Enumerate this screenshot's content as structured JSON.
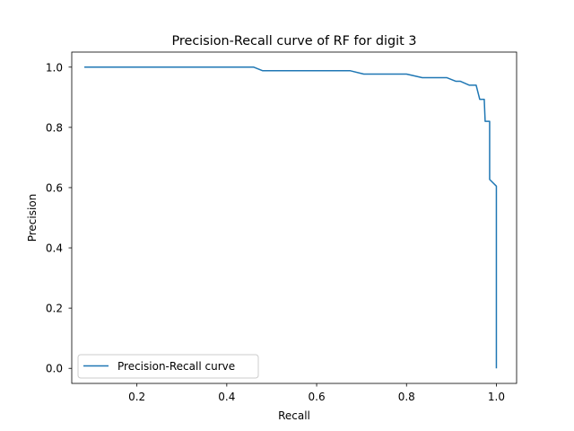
{
  "colors": {
    "line": "#1f77b4",
    "axes": "#000000",
    "background": "#ffffff"
  },
  "chart_data": {
    "type": "line",
    "title": "Precision-Recall curve of RF for digit 3",
    "xlabel": "Recall",
    "ylabel": "Precision",
    "xlim": [
      0.055,
      1.045
    ],
    "ylim": [
      -0.05,
      1.05
    ],
    "xticks": [
      0.2,
      0.4,
      0.6,
      0.8,
      1.0
    ],
    "xtick_labels": [
      "0.2",
      "0.4",
      "0.6",
      "0.8",
      "1.0"
    ],
    "yticks": [
      0.0,
      0.2,
      0.4,
      0.6,
      0.8,
      1.0
    ],
    "ytick_labels": [
      "0.0",
      "0.2",
      "0.4",
      "0.6",
      "0.8",
      "1.0"
    ],
    "grid": false,
    "legend": {
      "position": "lower-left",
      "entries": [
        "Precision-Recall curve"
      ]
    },
    "series": [
      {
        "name": "Precision-Recall curve",
        "x": [
          0.083,
          0.46,
          0.48,
          0.675,
          0.705,
          0.8,
          0.835,
          0.89,
          0.91,
          0.92,
          0.94,
          0.955,
          0.963,
          0.973,
          0.975,
          0.985,
          0.985,
          1.0,
          1.0
        ],
        "y": [
          1.0,
          1.0,
          0.988,
          0.988,
          0.977,
          0.977,
          0.965,
          0.965,
          0.953,
          0.953,
          0.94,
          0.94,
          0.893,
          0.893,
          0.82,
          0.82,
          0.627,
          0.605,
          0.0
        ]
      }
    ]
  }
}
